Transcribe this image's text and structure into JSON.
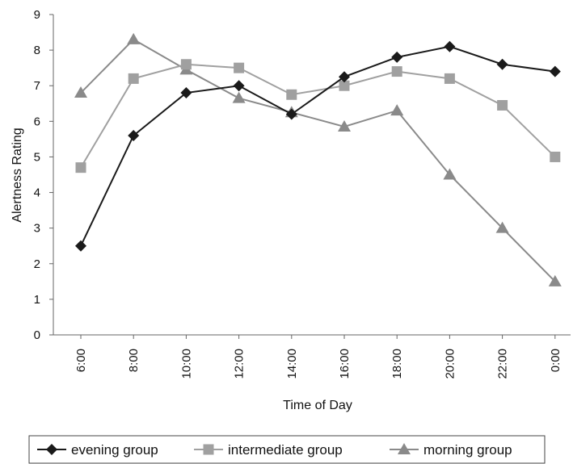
{
  "chart_data": {
    "type": "line",
    "title": "",
    "xlabel": "Time of Day",
    "ylabel": "Alertness Rating",
    "categories": [
      "6:00",
      "8:00",
      "10:00",
      "12:00",
      "14:00",
      "16:00",
      "18:00",
      "20:00",
      "22:00",
      "0:00"
    ],
    "ylim": [
      0,
      9
    ],
    "yticks": [
      0,
      1,
      2,
      3,
      4,
      5,
      6,
      7,
      8,
      9
    ],
    "grid": false,
    "legend_position": "bottom",
    "series": [
      {
        "name": "evening group",
        "marker": "diamond",
        "color": "#1a1a1a",
        "values": [
          2.5,
          5.6,
          6.8,
          7.0,
          6.2,
          7.25,
          7.8,
          8.1,
          7.6,
          7.4
        ]
      },
      {
        "name": "intermediate group",
        "marker": "square",
        "color": "#a0a0a0",
        "values": [
          4.7,
          7.2,
          7.6,
          7.5,
          6.75,
          7.0,
          7.4,
          7.2,
          6.45,
          5.0
        ]
      },
      {
        "name": "morning group",
        "marker": "triangle",
        "color": "#8a8a8a",
        "values": [
          6.8,
          8.3,
          7.45,
          6.65,
          6.25,
          5.85,
          6.3,
          4.5,
          3.0,
          1.5
        ]
      }
    ]
  }
}
